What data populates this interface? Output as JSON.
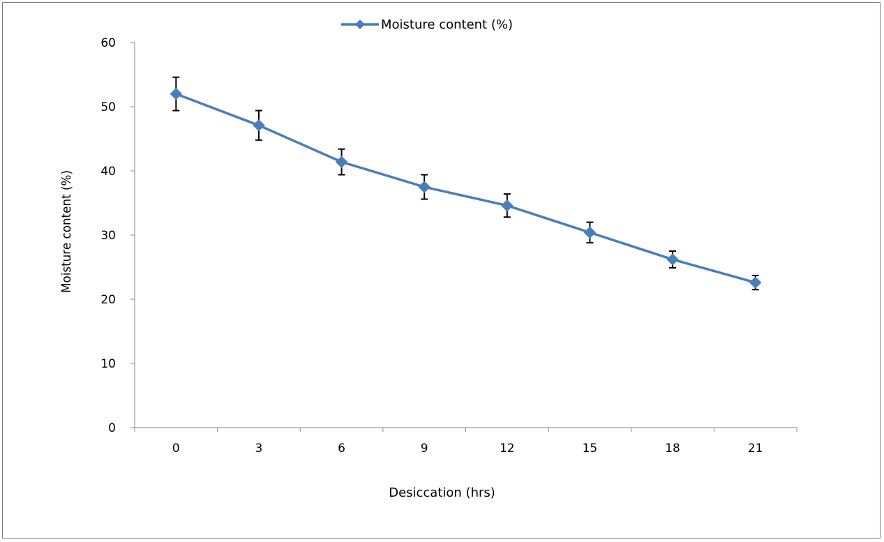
{
  "chart_data": {
    "type": "line",
    "title": "",
    "xlabel": "Desiccation (hrs)",
    "ylabel": "Moisture content (%)",
    "categories": [
      "0",
      "3",
      "6",
      "9",
      "12",
      "15",
      "18",
      "21"
    ],
    "ylim": [
      0,
      60
    ],
    "yticks": [
      "0",
      "10",
      "20",
      "30",
      "40",
      "50",
      "60"
    ],
    "grid": false,
    "legend_position": "top-center",
    "series": [
      {
        "name": "Moisture content (%)",
        "color": "#4a7ebb",
        "values": [
          52.0,
          47.1,
          41.4,
          37.5,
          34.6,
          30.4,
          26.2,
          22.6
        ],
        "error": [
          2.6,
          2.3,
          2.0,
          1.9,
          1.8,
          1.6,
          1.3,
          1.1
        ]
      }
    ]
  }
}
